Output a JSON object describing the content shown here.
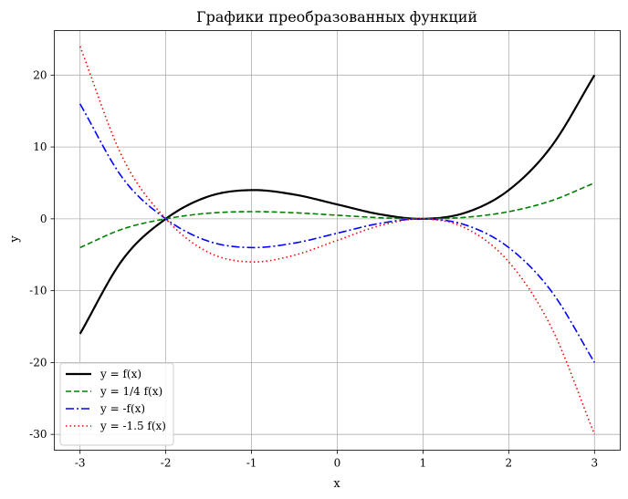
{
  "chart_data": {
    "type": "line",
    "title": "Графики преобразованных функций",
    "xlabel": "x",
    "ylabel": "y",
    "xlim": [
      -3.3,
      3.3
    ],
    "ylim": [
      -32.2,
      26.2
    ],
    "xticks": [
      -3,
      -2,
      -1,
      0,
      1,
      2,
      3
    ],
    "yticks": [
      -30,
      -20,
      -10,
      0,
      10,
      20
    ],
    "xtick_labels": [
      "-3",
      "-2",
      "-1",
      "0",
      "1",
      "2",
      "3"
    ],
    "ytick_labels": [
      "-30",
      "-20",
      "-10",
      "0",
      "10",
      "20"
    ],
    "grid": true,
    "legend_position": "lower-left",
    "x": [
      -3,
      -2.5,
      -2,
      -1.5,
      -1,
      -0.5,
      0,
      0.5,
      1,
      1.5,
      2,
      2.5,
      3
    ],
    "series": [
      {
        "name": "y = f(x)",
        "color": "#000000",
        "style": "solid",
        "values": [
          -16,
          -5.625,
          0,
          3.125,
          4,
          3.375,
          2,
          0.625,
          0,
          0.875,
          4,
          10.125,
          20
        ]
      },
      {
        "name": "y = 1/4 f(x)",
        "color": "#008000",
        "style": "dashed",
        "values": [
          -4,
          -1.40625,
          0,
          0.78125,
          1,
          0.84375,
          0.5,
          0.15625,
          0,
          0.21875,
          1,
          2.53125,
          5
        ]
      },
      {
        "name": "y = -f(x)",
        "color": "#0000ff",
        "style": "dashdot",
        "values": [
          16,
          5.625,
          0,
          -3.125,
          -4,
          -3.375,
          -2,
          -0.625,
          0,
          -0.875,
          -4,
          -10.125,
          -20
        ]
      },
      {
        "name": "y = -1.5 f(x)",
        "color": "#ff0000",
        "style": "dotted",
        "values": [
          24,
          8.4375,
          0,
          -4.6875,
          -6,
          -5.0625,
          -3,
          -0.9375,
          0,
          -1.3125,
          -6,
          -15.1875,
          -30
        ]
      }
    ]
  }
}
